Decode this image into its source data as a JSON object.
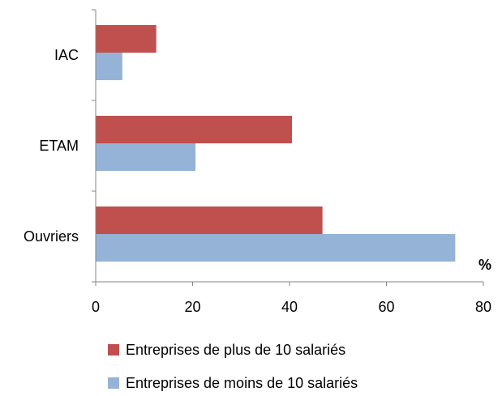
{
  "chart_data": {
    "type": "bar",
    "orientation": "horizontal",
    "categories": [
      "IAC",
      "ETAM",
      "Ouvriers"
    ],
    "series": [
      {
        "name": "Entreprises de plus de 10 salariés",
        "values": [
          12.5,
          40.5,
          46.8
        ],
        "color": "#C0504D"
      },
      {
        "name": "Entreprises de moins de 10 salariés",
        "values": [
          5.5,
          20.6,
          74.2
        ],
        "color": "#95B3D7"
      }
    ],
    "xlim": [
      0,
      80
    ],
    "xticks": [
      "0",
      "20",
      "40",
      "60",
      "80"
    ],
    "unit_label": "%",
    "grid": false,
    "legend_position": "bottom"
  }
}
